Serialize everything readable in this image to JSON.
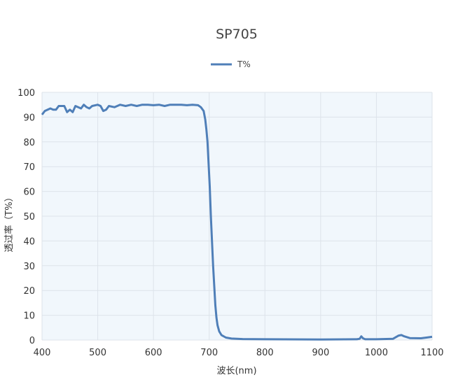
{
  "chart_data": {
    "type": "line",
    "title": "SP705",
    "xlabel": "波长(nm)",
    "ylabel": "透过率（T%）",
    "xlim": [
      400,
      1100
    ],
    "ylim": [
      0,
      100
    ],
    "xticks": [
      400,
      500,
      600,
      700,
      800,
      900,
      1000,
      1100
    ],
    "yticks": [
      0,
      10,
      20,
      30,
      40,
      50,
      60,
      70,
      80,
      90,
      100
    ],
    "grid": true,
    "legend": "top-center",
    "series": [
      {
        "name": "T%",
        "color": "#4f7fb8",
        "x": [
          400,
          405,
          415,
          420,
          425,
          430,
          440,
          445,
          450,
          455,
          460,
          465,
          470,
          475,
          480,
          485,
          490,
          500,
          505,
          510,
          515,
          520,
          530,
          540,
          550,
          560,
          570,
          580,
          590,
          600,
          610,
          620,
          630,
          640,
          650,
          660,
          670,
          680,
          685,
          690,
          693,
          695,
          697,
          699,
          701,
          703,
          705,
          707,
          709,
          711,
          713,
          715,
          718,
          722,
          730,
          740,
          760,
          800,
          900,
          965,
          970,
          973,
          976,
          980,
          1000,
          1030,
          1040,
          1045,
          1050,
          1060,
          1080,
          1090,
          1100
        ],
        "y": [
          91,
          92.5,
          93.5,
          93,
          93,
          94.5,
          94.5,
          92,
          93,
          92,
          94.5,
          94,
          93.5,
          95,
          94,
          93.5,
          94.5,
          95,
          94.5,
          92.5,
          93,
          94.5,
          94,
          95,
          94.5,
          95,
          94.5,
          95,
          95,
          94.8,
          95,
          94.5,
          95,
          95,
          95,
          94.8,
          95,
          94.8,
          94,
          92.5,
          89,
          85,
          80,
          71,
          62,
          50,
          40,
          30,
          22,
          14,
          9,
          6,
          3.5,
          2,
          1,
          0.6,
          0.4,
          0.3,
          0.2,
          0.3,
          0.5,
          1.5,
          0.7,
          0.3,
          0.3,
          0.5,
          1.8,
          2,
          1.5,
          0.8,
          0.7,
          1,
          1.3
        ]
      }
    ]
  }
}
